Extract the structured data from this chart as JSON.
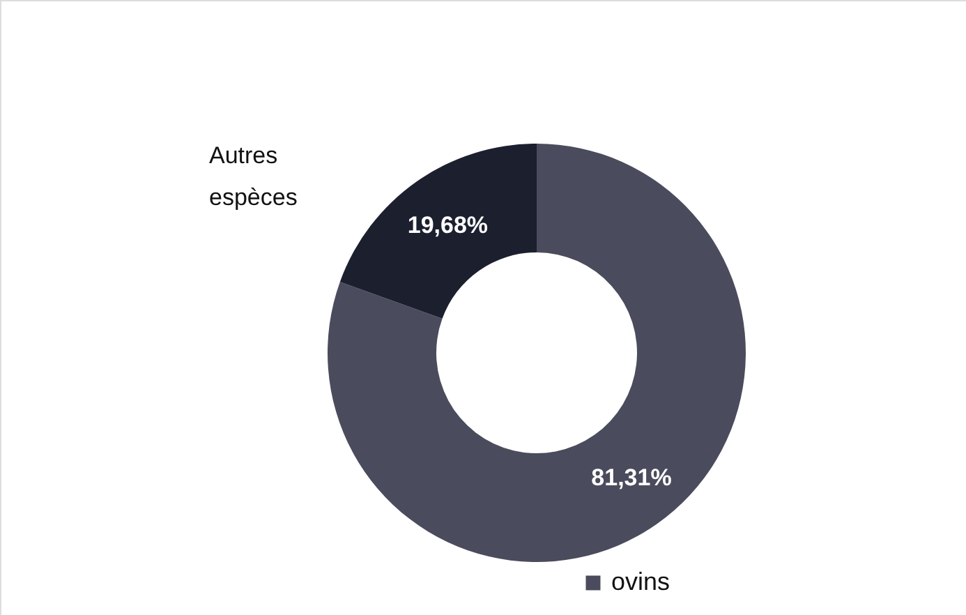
{
  "chart_data": {
    "type": "donut",
    "categories": [
      "ovins",
      "Autres espèces"
    ],
    "values": [
      81.31,
      19.68
    ],
    "colors": [
      "#4a4b5c",
      "#1c1f2e"
    ],
    "value_labels": [
      "81,31%",
      "19,68%"
    ],
    "legend": "bottom"
  }
}
